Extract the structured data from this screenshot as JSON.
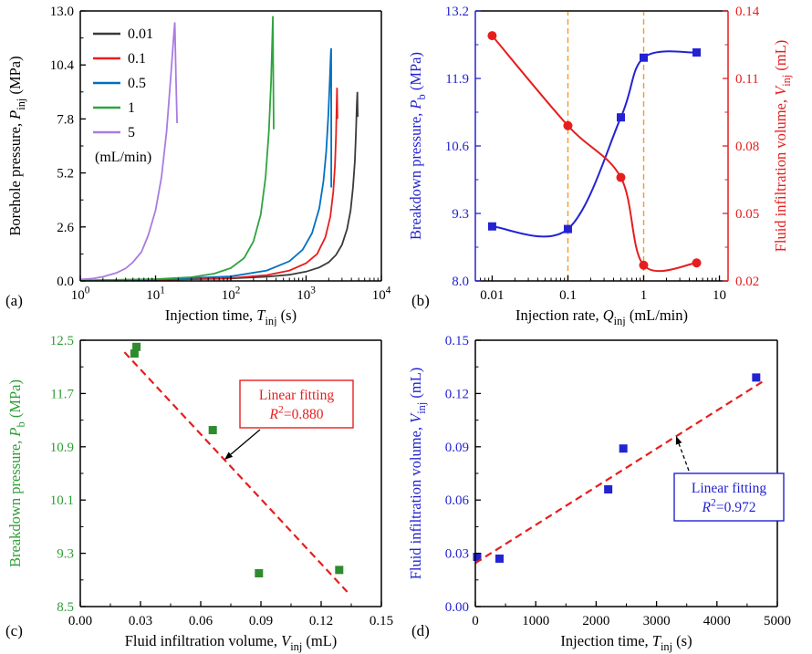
{
  "figure": {
    "background": "#ffffff"
  },
  "panels": [
    {
      "label": "(a)"
    },
    {
      "label": "(b)"
    },
    {
      "label": "(c)"
    },
    {
      "label": "(d)"
    }
  ],
  "chart_data": [
    {
      "id": "a",
      "type": "line",
      "x": {
        "scale": "log",
        "min": 1,
        "max": 10000,
        "label": [
          {
            "t": "Injection time, "
          },
          {
            "t": "T",
            "i": true
          },
          {
            "t": "inj",
            "sub": true
          },
          {
            "t": " (s)"
          }
        ],
        "ticks": [
          {
            "v": 1,
            "pow": 0
          },
          {
            "v": 10,
            "pow": 1
          },
          {
            "v": 100,
            "pow": 2
          },
          {
            "v": 1000,
            "pow": 3
          },
          {
            "v": 10000,
            "pow": 4
          }
        ]
      },
      "y": {
        "scale": "linear",
        "min": 0,
        "max": 13,
        "minor": true,
        "label": [
          {
            "t": "Borehole pressure, "
          },
          {
            "t": "P",
            "i": true
          },
          {
            "t": "inj",
            "sub": true
          },
          {
            "t": " (MPa)"
          }
        ],
        "ticks": [
          {
            "v": 0,
            "t": "0.0"
          },
          {
            "v": 2.6,
            "t": "2.6"
          },
          {
            "v": 5.2,
            "t": "5.2"
          },
          {
            "v": 7.8,
            "t": "7.8"
          },
          {
            "v": 10.4,
            "t": "10.4"
          },
          {
            "v": 13,
            "t": "13.0"
          }
        ]
      },
      "legend": {
        "unit": "(mL/min)",
        "items": [
          {
            "label": "0.01",
            "color": "#3a3a3a"
          },
          {
            "label": "0.1",
            "color": "#e61e1e"
          },
          {
            "label": "0.5",
            "color": "#0070c0"
          },
          {
            "label": "1",
            "color": "#2fa43e"
          },
          {
            "label": "5",
            "color": "#a97ce0"
          }
        ]
      },
      "series": [
        {
          "name": "0.01",
          "color": "#3a3a3a",
          "points": [
            [
              1,
              0.02
            ],
            [
              10,
              0.05
            ],
            [
              100,
              0.12
            ],
            [
              300,
              0.2
            ],
            [
              600,
              0.3
            ],
            [
              1000,
              0.45
            ],
            [
              1500,
              0.65
            ],
            [
              2000,
              0.9
            ],
            [
              2500,
              1.25
            ],
            [
              3000,
              1.75
            ],
            [
              3500,
              2.5
            ],
            [
              3900,
              3.4
            ],
            [
              4200,
              4.5
            ],
            [
              4450,
              5.8
            ],
            [
              4600,
              7.2
            ],
            [
              4720,
              8.5
            ],
            [
              4800,
              9.1
            ],
            [
              4830,
              8.4
            ],
            [
              4860,
              7.9
            ]
          ]
        },
        {
          "name": "0.1",
          "color": "#e61e1e",
          "points": [
            [
              1,
              0.02
            ],
            [
              10,
              0.05
            ],
            [
              100,
              0.14
            ],
            [
              300,
              0.28
            ],
            [
              600,
              0.5
            ],
            [
              1000,
              0.85
            ],
            [
              1400,
              1.3
            ],
            [
              1800,
              2.1
            ],
            [
              2100,
              3.1
            ],
            [
              2300,
              4.3
            ],
            [
              2420,
              5.6
            ],
            [
              2500,
              7.0
            ],
            [
              2550,
              8.5
            ],
            [
              2575,
              9.3
            ],
            [
              2595,
              8.3
            ],
            [
              2615,
              7.8
            ]
          ]
        },
        {
          "name": "0.5",
          "color": "#0070c0",
          "points": [
            [
              1,
              0.02
            ],
            [
              10,
              0.07
            ],
            [
              100,
              0.22
            ],
            [
              300,
              0.5
            ],
            [
              600,
              0.95
            ],
            [
              900,
              1.5
            ],
            [
              1200,
              2.3
            ],
            [
              1500,
              3.5
            ],
            [
              1700,
              4.8
            ],
            [
              1850,
              6.2
            ],
            [
              1975,
              8.0
            ],
            [
              2070,
              9.8
            ],
            [
              2130,
              11.0
            ],
            [
              2155,
              11.2
            ],
            [
              2158,
              7.0
            ],
            [
              2162,
              4.5
            ]
          ]
        },
        {
          "name": "1",
          "color": "#2fa43e",
          "points": [
            [
              1,
              0.02
            ],
            [
              10,
              0.09
            ],
            [
              30,
              0.18
            ],
            [
              60,
              0.35
            ],
            [
              100,
              0.62
            ],
            [
              150,
              1.1
            ],
            [
              200,
              1.9
            ],
            [
              250,
              3.2
            ],
            [
              290,
              5.0
            ],
            [
              320,
              7.2
            ],
            [
              342,
              9.6
            ],
            [
              356,
              11.8
            ],
            [
              362,
              12.75
            ],
            [
              367,
              9.5
            ],
            [
              371,
              7.3
            ]
          ]
        },
        {
          "name": "5",
          "color": "#a97ce0",
          "points": [
            [
              1,
              0.07
            ],
            [
              1.5,
              0.12
            ],
            [
              2,
              0.2
            ],
            [
              3,
              0.38
            ],
            [
              4,
              0.6
            ],
            [
              5,
              0.9
            ],
            [
              6.5,
              1.4
            ],
            [
              8,
              2.2
            ],
            [
              10,
              3.4
            ],
            [
              12,
              5.0
            ],
            [
              14,
              7.2
            ],
            [
              16,
              9.9
            ],
            [
              17.5,
              11.9
            ],
            [
              18,
              12.45
            ],
            [
              18.7,
              9.7
            ],
            [
              19.3,
              7.6
            ]
          ]
        }
      ]
    },
    {
      "id": "b",
      "type": "line",
      "x": {
        "scale": "log",
        "min": 0.006,
        "max": 13,
        "label": [
          {
            "t": "Injection rate, "
          },
          {
            "t": "Q",
            "i": true
          },
          {
            "t": "inj",
            "sub": true
          },
          {
            "t": " (mL/min)"
          }
        ],
        "ticks": [
          {
            "v": 0.01,
            "t": "0.01"
          },
          {
            "v": 0.1,
            "t": "0.1"
          },
          {
            "v": 1,
            "t": "1"
          },
          {
            "v": 10,
            "t": "10"
          }
        ]
      },
      "y": {
        "scale": "linear",
        "min": 8,
        "max": 13.2,
        "minor": true,
        "color": "#2323d2",
        "label": [
          {
            "t": "Breakdown pressure, "
          },
          {
            "t": "P",
            "i": true
          },
          {
            "t": "b",
            "sub": true
          },
          {
            "t": " (MPa)"
          }
        ],
        "ticks": [
          {
            "v": 8,
            "t": "8.0"
          },
          {
            "v": 9.3,
            "t": "9.3"
          },
          {
            "v": 10.6,
            "t": "10.6"
          },
          {
            "v": 11.9,
            "t": "11.9"
          },
          {
            "v": 13.2,
            "t": "13.2"
          }
        ]
      },
      "y2": {
        "scale": "linear",
        "min": 0.02,
        "max": 0.14,
        "minor": true,
        "color": "#e61e1e",
        "label": [
          {
            "t": "Fluid infiltration volume, "
          },
          {
            "t": "V",
            "i": true
          },
          {
            "t": "inj",
            "sub": true
          },
          {
            "t": " (mL)"
          }
        ],
        "ticks": [
          {
            "v": 0.02,
            "t": "0.02"
          },
          {
            "v": 0.05,
            "t": "0.05"
          },
          {
            "v": 0.08,
            "t": "0.08"
          },
          {
            "v": 0.11,
            "t": "0.11"
          },
          {
            "v": 0.14,
            "t": "0.14"
          }
        ]
      },
      "ref_lines": [
        {
          "x": 0.1,
          "color": "#f59a23"
        },
        {
          "x": 1,
          "color": "#f59a23"
        }
      ],
      "series": [
        {
          "name": "breakdown-pressure",
          "color": "#2323d2",
          "marker": "square",
          "smooth": true,
          "width": 2,
          "points": [
            [
              0.01,
              9.05
            ],
            [
              0.1,
              9.0
            ],
            [
              0.5,
              11.15
            ],
            [
              1,
              12.3
            ],
            [
              5,
              12.4
            ]
          ]
        },
        {
          "name": "fluid-infiltration-volume",
          "color": "#e61e1e",
          "axis": "y2",
          "marker": "circle",
          "smooth": true,
          "width": 2,
          "points": [
            [
              0.01,
              0.129
            ],
            [
              0.1,
              0.089
            ],
            [
              0.5,
              0.066
            ],
            [
              1,
              0.027
            ],
            [
              5,
              0.028
            ]
          ]
        }
      ]
    },
    {
      "id": "c",
      "type": "scatter",
      "x": {
        "scale": "linear",
        "min": 0,
        "max": 0.15,
        "minor": true,
        "label": [
          {
            "t": "Fluid infiltration volume, "
          },
          {
            "t": "V",
            "i": true
          },
          {
            "t": "inj",
            "sub": true
          },
          {
            "t": " (mL)"
          }
        ],
        "ticks": [
          {
            "v": 0,
            "t": "0.00"
          },
          {
            "v": 0.03,
            "t": "0.03"
          },
          {
            "v": 0.06,
            "t": "0.06"
          },
          {
            "v": 0.09,
            "t": "0.09"
          },
          {
            "v": 0.12,
            "t": "0.12"
          },
          {
            "v": 0.15,
            "t": "0.15"
          }
        ]
      },
      "y": {
        "scale": "linear",
        "min": 8.5,
        "max": 12.5,
        "minor": true,
        "label_color": "#2e9e35",
        "label": [
          {
            "t": "Breakdown pressure, "
          },
          {
            "t": "P",
            "i": true
          },
          {
            "t": "b",
            "sub": true
          },
          {
            "t": " (MPa)"
          }
        ],
        "ticks": [
          {
            "v": 8.5,
            "t": "8.5"
          },
          {
            "v": 9.3,
            "t": "9.3"
          },
          {
            "v": 10.1,
            "t": "10.1"
          },
          {
            "v": 10.9,
            "t": "10.9"
          },
          {
            "v": 11.7,
            "t": "11.7"
          },
          {
            "v": 12.5,
            "t": "12.5"
          }
        ]
      },
      "series": [
        {
          "name": "data-points",
          "color": "#2e8b2e",
          "marker": "square",
          "line": false,
          "points": [
            [
              0.027,
              12.3
            ],
            [
              0.028,
              12.4
            ],
            [
              0.066,
              11.15
            ],
            [
              0.089,
              9.0
            ],
            [
              0.129,
              9.05
            ]
          ]
        },
        {
          "name": "linear-fit",
          "color": "#e61e1e",
          "dash": "8 5",
          "width": 2.2,
          "points": [
            [
              0.022,
              12.32
            ],
            [
              0.133,
              8.72
            ]
          ]
        }
      ],
      "annotation": {
        "lines": [
          [
            {
              "t": "Linear fitting"
            }
          ],
          [
            {
              "t": "R",
              "i": true
            },
            {
              "t": "2",
              "sup": true
            },
            {
              "t": "=0.880"
            }
          ]
        ],
        "color": "#e61e1e",
        "border": "#e61e1e",
        "arrow_dashed": false,
        "r_squared": 0.88
      }
    },
    {
      "id": "d",
      "type": "scatter",
      "x": {
        "scale": "linear",
        "min": 0,
        "max": 5000,
        "minor": true,
        "label": [
          {
            "t": "Injection time, "
          },
          {
            "t": "T",
            "i": true
          },
          {
            "t": "inj",
            "sub": true
          },
          {
            "t": " (s)"
          }
        ],
        "ticks": [
          {
            "v": 0,
            "t": "0"
          },
          {
            "v": 1000,
            "t": "1000"
          },
          {
            "v": 2000,
            "t": "2000"
          },
          {
            "v": 3000,
            "t": "3000"
          },
          {
            "v": 4000,
            "t": "4000"
          },
          {
            "v": 5000,
            "t": "5000"
          }
        ]
      },
      "y": {
        "scale": "linear",
        "min": 0,
        "max": 0.15,
        "minor": true,
        "label_color": "#2323d2",
        "label": [
          {
            "t": "Fluid infiltration volume, "
          },
          {
            "t": "V",
            "i": true
          },
          {
            "t": "inj",
            "sub": true
          },
          {
            "t": " (mL)"
          }
        ],
        "ticks": [
          {
            "v": 0,
            "t": "0.00"
          },
          {
            "v": 0.03,
            "t": "0.03"
          },
          {
            "v": 0.06,
            "t": "0.06"
          },
          {
            "v": 0.09,
            "t": "0.09"
          },
          {
            "v": 0.12,
            "t": "0.12"
          },
          {
            "v": 0.15,
            "t": "0.15"
          }
        ]
      },
      "series": [
        {
          "name": "data-points",
          "color": "#2323d2",
          "marker": "square",
          "line": false,
          "points": [
            [
              30,
              0.028
            ],
            [
              400,
              0.027
            ],
            [
              2200,
              0.066
            ],
            [
              2450,
              0.089
            ],
            [
              4650,
              0.129
            ]
          ]
        },
        {
          "name": "linear-fit",
          "color": "#e61e1e",
          "dash": "8 5",
          "width": 2.2,
          "points": [
            [
              0,
              0.0245
            ],
            [
              4750,
              0.1265
            ]
          ]
        }
      ],
      "annotation": {
        "lines": [
          [
            {
              "t": "Linear fitting"
            }
          ],
          [
            {
              "t": "R",
              "i": true
            },
            {
              "t": "2",
              "sup": true
            },
            {
              "t": "=0.972"
            }
          ]
        ],
        "color": "#2323d2",
        "border": "#2323d2",
        "arrow_dashed": true,
        "r_squared": 0.972
      }
    }
  ]
}
